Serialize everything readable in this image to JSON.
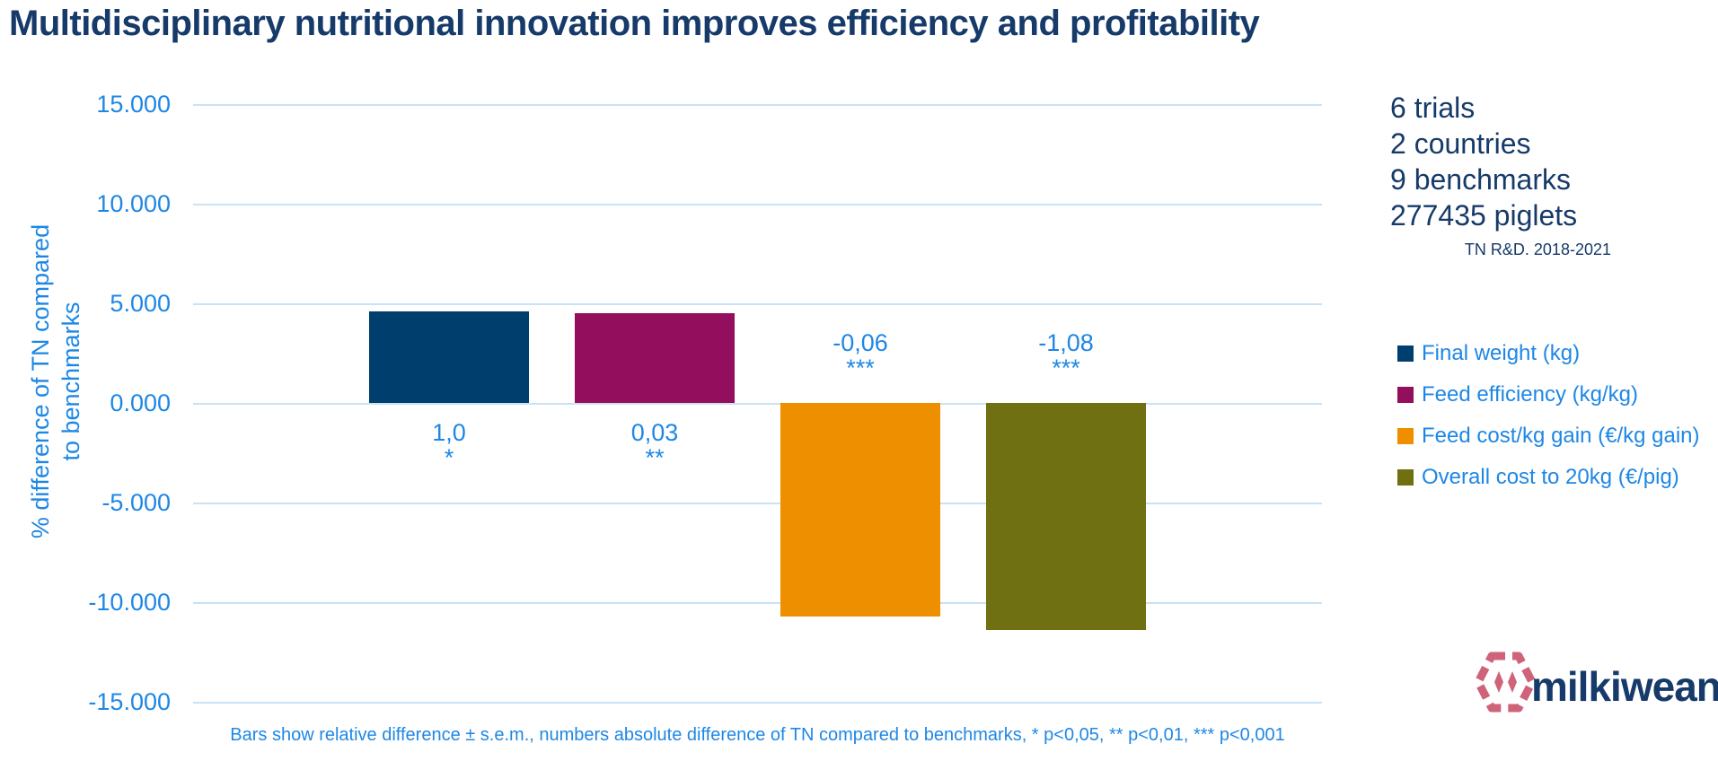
{
  "title": "Multidisciplinary nutritional innovation improves efficiency and profitability",
  "chart_data": {
    "type": "bar",
    "title": "",
    "xlabel": "",
    "ylabel": "% difference of TN compared to benchmarks",
    "ylabel_lines": [
      "% difference of TN compared",
      "to benchmarks"
    ],
    "ylim": [
      -15,
      15
    ],
    "grid": true,
    "legend_position": "right",
    "ytick_values": [
      15,
      10,
      5,
      0,
      -5,
      -10,
      -15
    ],
    "ytick_labels": [
      "15.000",
      "10.000",
      "5.000",
      "0.000",
      "-5.000",
      "-10.000",
      "-15.000"
    ],
    "categories": [
      "Final weight (kg)",
      "Feed efficiency (kg/kg)",
      "Feed cost/kg gain (€/kg gain)",
      "Overall cost to 20kg (€/pig)"
    ],
    "series": [
      {
        "name": "Final weight (kg)",
        "color": "#003E6E",
        "relative_pct": 4.6,
        "value_label": "1,0",
        "significance": "*"
      },
      {
        "name": "Feed efficiency (kg/kg)",
        "color": "#930F5D",
        "relative_pct": 4.5,
        "value_label": "0,03",
        "significance": "**"
      },
      {
        "name": "Feed cost/kg gain (€/kg gain)",
        "color": "#EE8F00",
        "relative_pct": -10.7,
        "value_label": "-0,06",
        "significance": "***"
      },
      {
        "name": "Overall cost to 20kg (€/pig)",
        "color": "#6E7012",
        "relative_pct": -11.4,
        "value_label": "-1,08",
        "significance": "***"
      }
    ]
  },
  "stats_panel": {
    "lines": [
      "6 trials",
      "2 countries",
      "9 benchmarks",
      "277435 piglets"
    ],
    "source": "TN R&D. 2018-2021"
  },
  "footnote": "Bars show relative difference ± s.e.m., numbers absolute difference of TN compared to benchmarks, * p<0,05, ** p<0,01, *** p<0,001",
  "logo": {
    "text": "milkiwean",
    "icon": "gem-icon",
    "text_color": "#163A69",
    "icon_color": "#CF6379"
  }
}
